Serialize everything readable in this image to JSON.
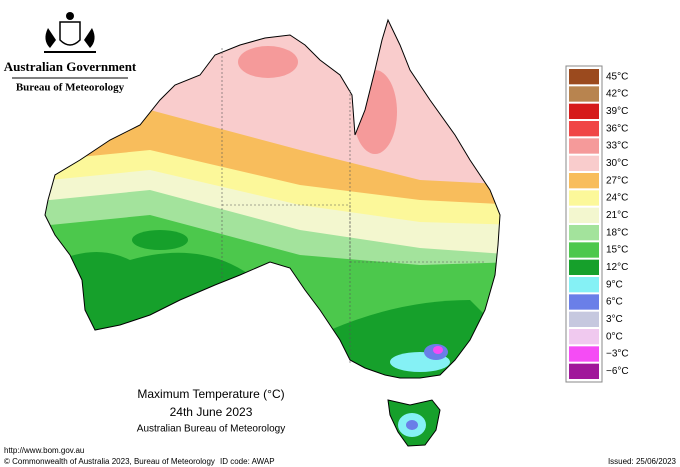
{
  "header": {
    "government": "Australian Government",
    "agency": "Bureau of Meteorology"
  },
  "map": {
    "title": "Maximum Temperature (°C)",
    "date": "24th June 2023",
    "source": "Australian Bureau of Meteorology"
  },
  "legend": [
    {
      "label": "45°C",
      "color": "#9b4a1e"
    },
    {
      "label": "42°C",
      "color": "#b8844f"
    },
    {
      "label": "39°C",
      "color": "#d61b1b"
    },
    {
      "label": "36°C",
      "color": "#f04646"
    },
    {
      "label": "33°C",
      "color": "#f59a9a"
    },
    {
      "label": "30°C",
      "color": "#f9cccc"
    },
    {
      "label": "27°C",
      "color": "#f8bd5c"
    },
    {
      "label": "24°C",
      "color": "#fcf89a"
    },
    {
      "label": "21°C",
      "color": "#f3f7cf"
    },
    {
      "label": "18°C",
      "color": "#a3e39c"
    },
    {
      "label": "15°C",
      "color": "#4cc84c"
    },
    {
      "label": "12°C",
      "color": "#16a02b"
    },
    {
      "label": "9°C",
      "color": "#85f1f5"
    },
    {
      "label": "6°C",
      "color": "#6a7fe8"
    },
    {
      "label": "3°C",
      "color": "#c6c8df"
    },
    {
      "label": "0°C",
      "color": "#f0c9ef"
    },
    {
      "label": "−3°C",
      "color": "#f54cf5"
    },
    {
      "label": "−6°C",
      "color": "#a0179a"
    }
  ],
  "footer": {
    "url": "http://www.bom.gov.au",
    "copyright": "© Commonwealth of Australia 2023, Bureau of Meteorology",
    "id_code": "ID code: AWAP",
    "issued": "Issued: 25/06/2023"
  }
}
